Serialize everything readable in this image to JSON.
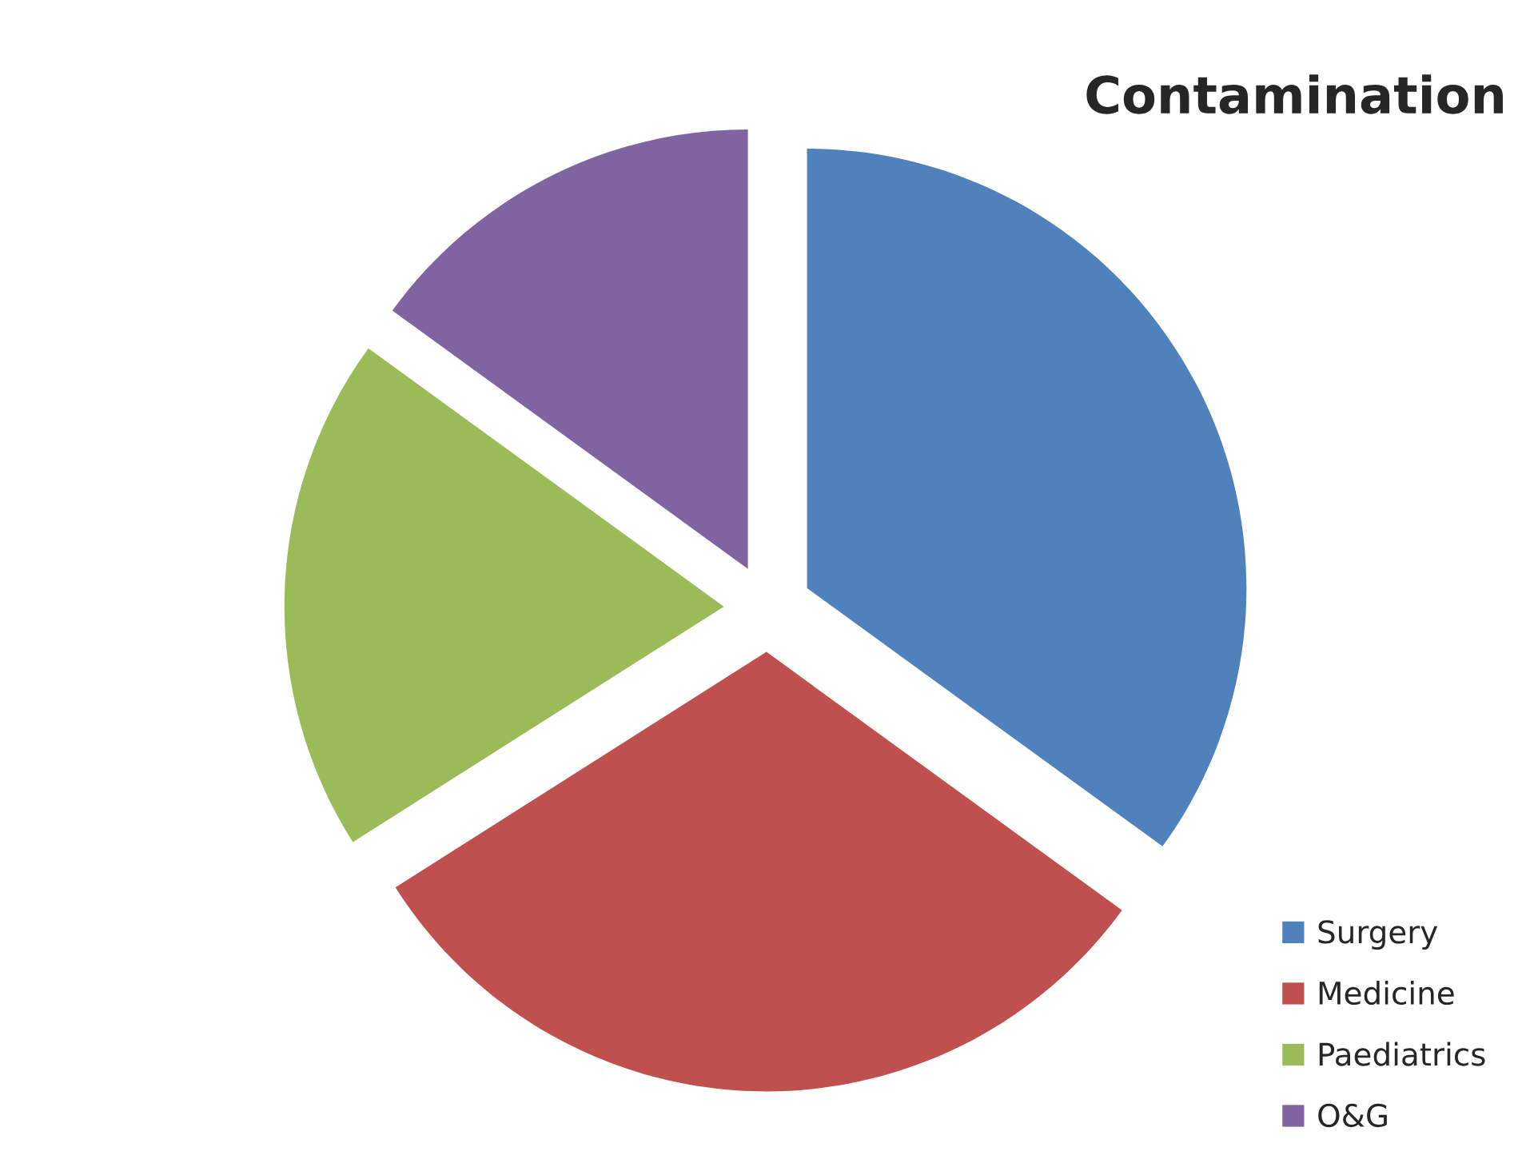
{
  "chart_data": {
    "type": "pie",
    "title": "Contamination",
    "categories": [
      "Surgery",
      "Medicine",
      "Paediatrics",
      "O&G"
    ],
    "values": [
      35,
      31,
      19,
      15
    ],
    "colors": [
      "#4f81bd",
      "#c0504d",
      "#9bbb59",
      "#8064a2"
    ],
    "legend": "bottom right"
  }
}
